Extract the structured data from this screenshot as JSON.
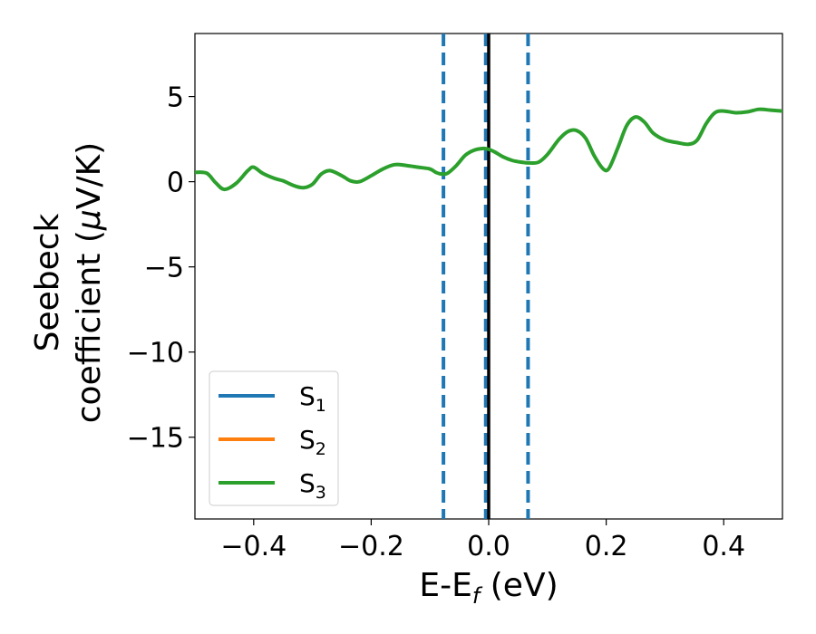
{
  "chart_data": {
    "type": "line",
    "xlabel": "E-E",
    "xlabel_sub": "f",
    "xlabel_unit": " (eV)",
    "ylabel_line1": "Seebeck",
    "ylabel_line2_a": "coefficient  (",
    "ylabel_line2_mu": "μ",
    "ylabel_line2_b": "V/K)",
    "xlim": [
      -0.5,
      0.5
    ],
    "ylim": [
      -19.8,
      8.7
    ],
    "xticks": [
      -0.4,
      -0.2,
      0.0,
      0.2,
      0.4
    ],
    "xtick_labels": [
      "−0.4",
      "−0.2",
      "0.0",
      "0.2",
      "0.4"
    ],
    "yticks": [
      5,
      0,
      -5,
      -10,
      -15
    ],
    "ytick_labels": [
      "5",
      "0",
      "−5",
      "−10",
      "−15"
    ],
    "grid": false,
    "legend_position": "lower-left",
    "vlines_dashed": [
      -0.077,
      -0.005,
      0.067
    ],
    "vline_solid": 0.0,
    "vline_dashed_color": "#1f77b4",
    "vline_solid_color": "#000000",
    "series": [
      {
        "name": "S",
        "sub": "1",
        "color": "#1f77b4",
        "x": [],
        "y": []
      },
      {
        "name": "S",
        "sub": "2",
        "color": "#ff7f0e",
        "x": [],
        "y": []
      },
      {
        "name": "S",
        "sub": "3",
        "color": "#2ca02c",
        "x": [
          -0.5,
          -0.48,
          -0.465,
          -0.45,
          -0.43,
          -0.41,
          -0.4,
          -0.385,
          -0.365,
          -0.35,
          -0.33,
          -0.315,
          -0.3,
          -0.285,
          -0.27,
          -0.25,
          -0.235,
          -0.22,
          -0.2,
          -0.18,
          -0.16,
          -0.14,
          -0.12,
          -0.1,
          -0.09,
          -0.08,
          -0.07,
          -0.055,
          -0.04,
          -0.025,
          -0.01,
          0.0,
          0.01,
          0.025,
          0.04,
          0.055,
          0.07,
          0.085,
          0.1,
          0.12,
          0.135,
          0.15,
          0.165,
          0.18,
          0.195,
          0.205,
          0.22,
          0.235,
          0.25,
          0.265,
          0.28,
          0.3,
          0.32,
          0.34,
          0.355,
          0.37,
          0.385,
          0.4,
          0.42,
          0.44,
          0.46,
          0.48,
          0.5
        ],
        "y": [
          0.55,
          0.5,
          -0.05,
          -0.45,
          -0.1,
          0.65,
          0.85,
          0.5,
          0.2,
          0.05,
          -0.25,
          -0.35,
          -0.15,
          0.45,
          0.65,
          0.35,
          0.05,
          0.0,
          0.35,
          0.75,
          1.0,
          0.95,
          0.85,
          0.75,
          0.55,
          0.45,
          0.5,
          0.95,
          1.55,
          1.85,
          1.95,
          1.9,
          1.75,
          1.45,
          1.25,
          1.15,
          1.1,
          1.15,
          1.6,
          2.5,
          2.95,
          3.0,
          2.55,
          1.5,
          0.75,
          0.8,
          2.0,
          3.3,
          3.8,
          3.5,
          2.85,
          2.45,
          2.3,
          2.2,
          2.45,
          3.4,
          4.05,
          4.15,
          4.05,
          4.1,
          4.25,
          4.2,
          4.15
        ]
      }
    ]
  }
}
